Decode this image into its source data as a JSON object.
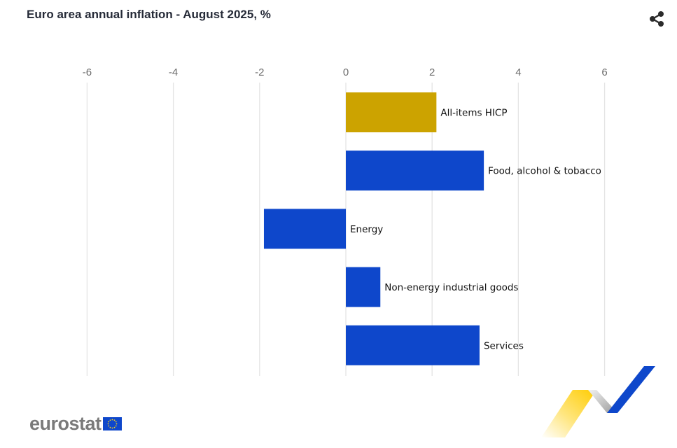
{
  "header": {
    "title": "Euro area annual inflation - August 2025, %",
    "share_icon": "share-icon"
  },
  "chart_data": {
    "type": "bar",
    "orientation": "horizontal",
    "title": "Euro area annual inflation - August 2025, %",
    "categories": [
      "All-items HICP",
      "Food, alcohol & tobacco",
      "Energy",
      "Non-energy industrial goods",
      "Services"
    ],
    "values": [
      2.1,
      3.2,
      -1.9,
      0.8,
      3.1
    ],
    "colors": [
      "#cca300",
      "#0e47cb",
      "#0e47cb",
      "#0e47cb",
      "#0e47cb"
    ],
    "xlim": [
      -6,
      6
    ],
    "xticks": [
      -6,
      -4,
      -2,
      0,
      2,
      4,
      6
    ],
    "axis_position": "top",
    "grid": true
  },
  "footer": {
    "logo_text": "eurostat",
    "flag_icon": "eu-flag-icon",
    "ribbon_icon": "ribbon-decoration"
  }
}
